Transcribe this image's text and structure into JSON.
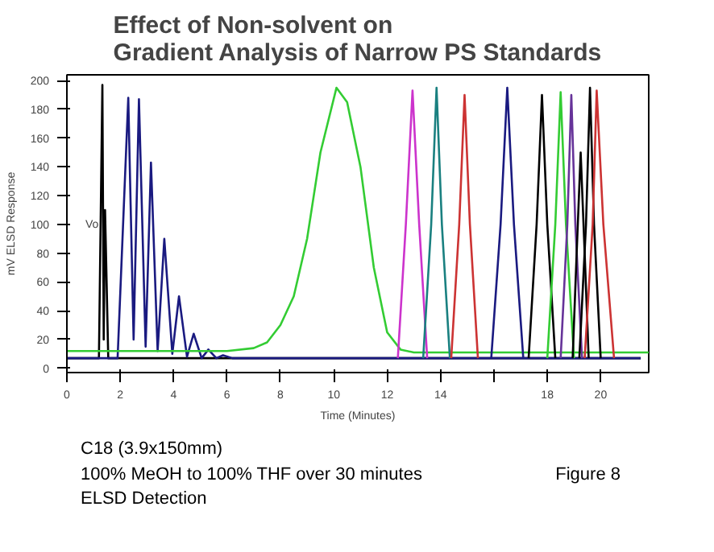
{
  "chart_data": {
    "type": "line",
    "title": "Effect of Non-solvent on\nGradient Analysis of Narrow PS Standards",
    "xlabel": "Time (Minutes)",
    "ylabel": "mV ELSD Response",
    "xlim": [
      0,
      21.8
    ],
    "ylim": [
      -3,
      204
    ],
    "xticks": [
      0,
      2,
      4,
      6,
      8,
      10,
      12,
      14,
      {
        "value": 16,
        "label": null
      },
      18,
      20
    ],
    "yticks": [
      0,
      20,
      40,
      60,
      80,
      100,
      120,
      140,
      160,
      180,
      200
    ],
    "grid": false,
    "annotations": [
      {
        "text": "Vo",
        "x": 1.43,
        "y": 110
      },
      "C18 (3.9x150mm)",
      "100% MeOH to 100% THF over 30 minutes",
      "ELSD Detection",
      "Figure 8"
    ],
    "series": [
      {
        "color": "#000000",
        "x": [
          0,
          1.2,
          1.33,
          1.38,
          1.43,
          1.55,
          21.5
        ],
        "values": [
          7,
          7,
          197,
          20,
          110,
          7,
          7
        ]
      },
      {
        "color": "#1a1a80",
        "x": [
          0,
          1.9,
          2.3,
          2.5,
          2.7,
          2.95,
          3.15,
          3.4,
          3.65,
          3.95,
          4.2,
          4.5,
          4.75,
          5.05,
          5.3,
          5.6,
          5.85,
          6.2,
          21.5
        ],
        "values": [
          7,
          7,
          188,
          20,
          187,
          15,
          143,
          12,
          90,
          10,
          50,
          8,
          24,
          7,
          13,
          7,
          9,
          7,
          7
        ]
      },
      {
        "color": "#33cc33",
        "x": [
          0,
          6,
          7,
          7.5,
          8,
          8.5,
          9,
          9.5,
          10.1,
          10.5,
          11,
          11.5,
          12,
          12.5,
          13,
          21.8
        ],
        "values": [
          12,
          12,
          14,
          18,
          30,
          50,
          90,
          150,
          195,
          185,
          140,
          70,
          25,
          13,
          11,
          11
        ]
      },
      {
        "color": "#cc33cc",
        "x": [
          12.4,
          12.7,
          12.95,
          13.2,
          13.5
        ],
        "values": [
          7,
          100,
          193,
          100,
          7
        ]
      },
      {
        "color": "#1a8080",
        "x": [
          13.35,
          13.65,
          13.85,
          14.05,
          14.35
        ],
        "values": [
          7,
          100,
          195,
          100,
          7
        ]
      },
      {
        "color": "#cc3333",
        "x": [
          14.4,
          14.7,
          14.9,
          15.1,
          15.4
        ],
        "values": [
          7,
          100,
          190,
          100,
          7
        ]
      },
      {
        "color": "#1a1a80",
        "x": [
          15.9,
          16.25,
          16.5,
          16.75,
          17.1
        ],
        "values": [
          7,
          100,
          195,
          100,
          7
        ]
      },
      {
        "color": "#000000",
        "x": [
          17.3,
          17.6,
          17.8,
          18.0,
          18.3
        ],
        "values": [
          7,
          100,
          190,
          100,
          7
        ]
      },
      {
        "color": "#33cc33",
        "x": [
          18.0,
          18.3,
          18.5,
          18.7,
          19.0
        ],
        "values": [
          7,
          100,
          192,
          100,
          7
        ]
      },
      {
        "color": "#663399",
        "x": [
          18.5,
          18.75,
          18.9,
          19.05,
          19.3
        ],
        "values": [
          7,
          100,
          190,
          100,
          7
        ]
      },
      {
        "color": "#000000",
        "x": [
          18.95,
          19.1,
          19.25,
          19.4,
          19.55
        ],
        "values": [
          7,
          80,
          150,
          80,
          7
        ]
      },
      {
        "color": "#000000",
        "x": [
          19.2,
          19.45,
          19.6,
          19.75,
          20.0
        ],
        "values": [
          7,
          100,
          195,
          100,
          7
        ]
      },
      {
        "color": "#cc3333",
        "x": [
          19.4,
          19.7,
          19.85,
          20.1,
          20.5
        ],
        "values": [
          7,
          100,
          193,
          100,
          7
        ]
      }
    ]
  }
}
